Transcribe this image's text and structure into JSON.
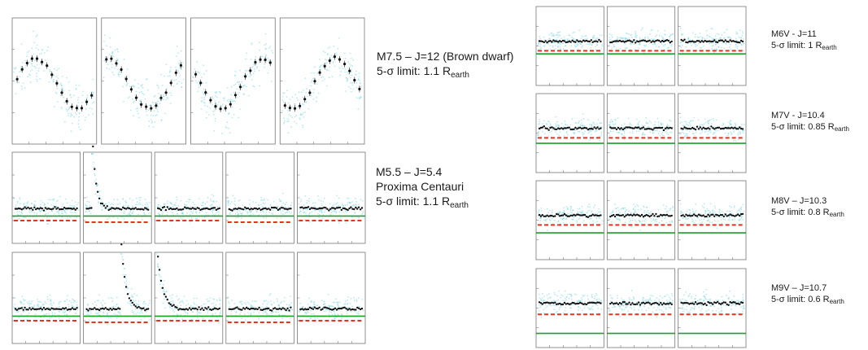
{
  "chart_data": [
    {
      "type": "scatter",
      "id": "p1",
      "caption": [
        "M7.5 – J=12 (Brown dwarf)",
        "5-σ limit: 1.1 R",
        "earth"
      ],
      "n_subpanels": 4,
      "shape": "sine",
      "limit_lines": {
        "red": false,
        "green": false
      }
    },
    {
      "type": "scatter",
      "id": "p2",
      "caption": [
        "M5.5 – J=5.4",
        "Proxima Centauri",
        "5-σ limit: 1.1 R",
        "earth"
      ],
      "n_subpanels": 5,
      "shape": "flare",
      "limit_lines": {
        "red": true,
        "green": true
      }
    },
    {
      "type": "scatter",
      "id": "p3",
      "n_subpanels": 5,
      "shape": "flare",
      "limit_lines": {
        "red": true,
        "green": true
      }
    },
    {
      "type": "scatter",
      "id": "p4",
      "caption": [
        "M6V - J=11",
        "5-σ limit: 1 R",
        "earth"
      ],
      "n_subpanels": 3,
      "shape": "flat",
      "limit_lines": {
        "red": true,
        "green": true
      }
    },
    {
      "type": "scatter",
      "id": "p5",
      "caption": [
        "M7V - J=10.4",
        "5-σ limit: 0.85 R",
        "earth"
      ],
      "n_subpanels": 3,
      "shape": "flat",
      "limit_lines": {
        "red": true,
        "green": true
      }
    },
    {
      "type": "scatter",
      "id": "p6",
      "caption": [
        "M8V – J=10.3",
        "5-σ limit: 0.8 R",
        "earth"
      ],
      "n_subpanels": 3,
      "shape": "flat",
      "limit_lines": {
        "red": true,
        "green": true
      }
    },
    {
      "type": "scatter",
      "id": "p7",
      "caption": [
        "M9V – J=10.7",
        "5-σ limit: 0.6 R",
        "earth"
      ],
      "n_subpanels": 3,
      "shape": "flat",
      "limit_lines": {
        "red": true,
        "green": true
      }
    }
  ],
  "colors": {
    "raw_points": "#7fd8e6",
    "binned_points": "#111111",
    "red_limit": "#e8321e",
    "green_limit": "#1e9e2a",
    "frame": "#777777"
  }
}
